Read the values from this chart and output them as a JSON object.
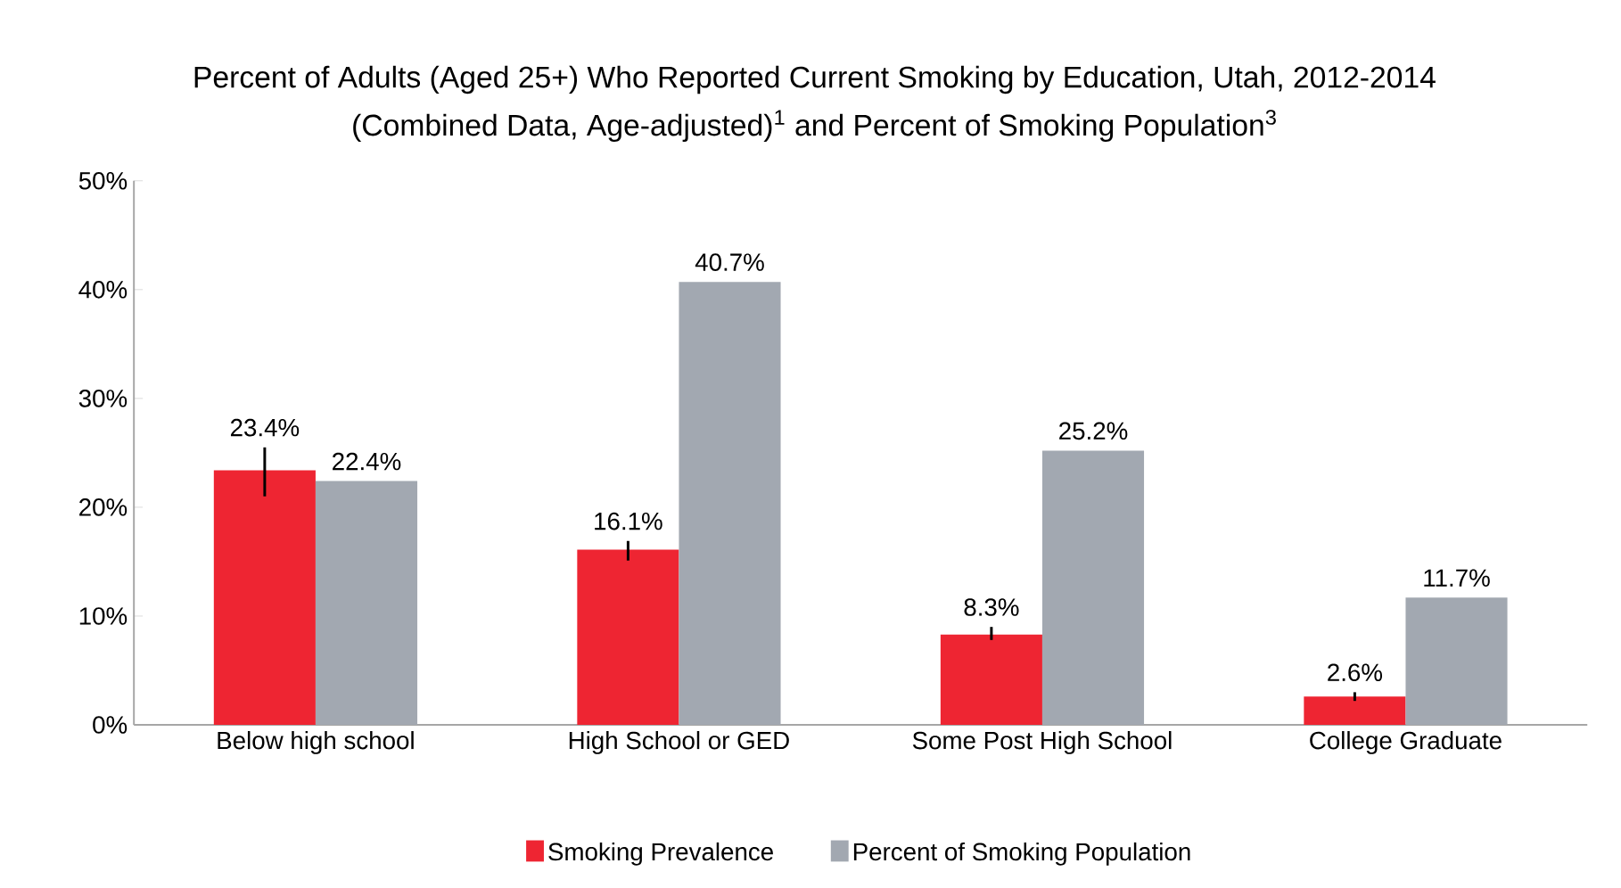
{
  "chart_data": {
    "type": "bar",
    "title": "Percent of Adults (Aged 25+) Who Reported Current Smoking by Education, Utah, 2012-2014",
    "subtitle": "(Combined Data, Age-adjusted)$^{1}$ and Percent of Smoking Population$^{3}$",
    "categories": [
      "Below high school",
      "High School or GED",
      "Some Post High School",
      "College Graduate"
    ],
    "series": [
      {
        "name": "Smoking Prevalence",
        "color": "#ee2532",
        "values": [
          23.4,
          16.1,
          8.3,
          2.6
        ],
        "errors": [
          [
            21.0,
            25.5
          ],
          [
            15.1,
            16.9
          ],
          [
            7.8,
            9.0
          ],
          [
            2.2,
            3.0
          ]
        ],
        "value_labels": [
          "23.4%",
          "16.1%",
          "8.3%",
          "2.6%"
        ]
      },
      {
        "name": "Percent of Smoking Population",
        "color": "#a2a8b1",
        "values": [
          22.4,
          40.7,
          25.2,
          11.7
        ],
        "value_labels": [
          "22.4%",
          "40.7%",
          "25.2%",
          "11.7%"
        ]
      }
    ],
    "ylim": [
      0,
      50
    ],
    "yticks": [
      {
        "value": 0,
        "label": "0%"
      },
      {
        "value": 10,
        "label": "10%"
      },
      {
        "value": 20,
        "label": "20%"
      },
      {
        "value": 30,
        "label": "30%"
      },
      {
        "value": 40,
        "label": "40%"
      },
      {
        "value": 50,
        "label": "50%"
      }
    ],
    "grid": false,
    "legend": "bottom"
  }
}
